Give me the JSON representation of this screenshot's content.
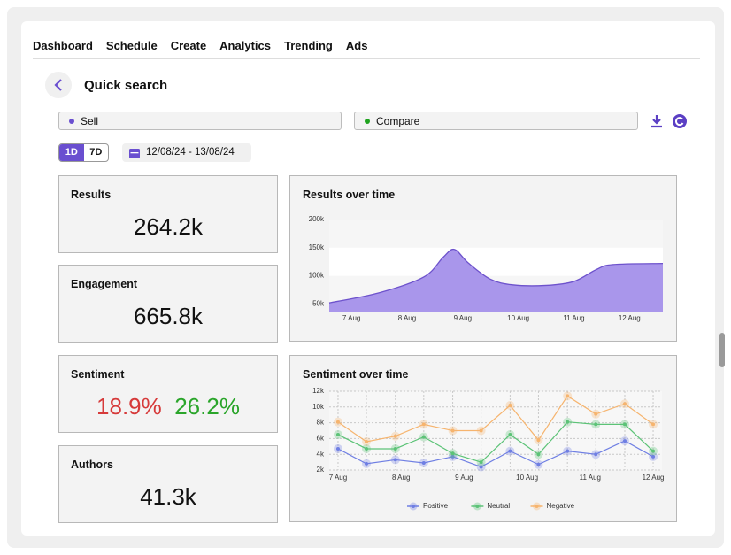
{
  "nav": {
    "tabs": [
      "Dashboard",
      "Schedule",
      "Create",
      "Analytics",
      "Trending",
      "Ads"
    ],
    "active": 4
  },
  "header": {
    "title": "Quick search"
  },
  "search": {
    "sell": "Sell",
    "compare": "Compare"
  },
  "range": {
    "buttons": [
      "1D",
      "7D"
    ],
    "active": 0,
    "dates": "12/08/24 - 13/08/24"
  },
  "cards": [
    {
      "label": "Results",
      "value": "264.2k"
    },
    {
      "label": "Engagement",
      "value": "665.8k"
    },
    {
      "label": "Sentiment",
      "values": [
        "18.9%",
        "26.2%"
      ]
    },
    {
      "label": "Authors",
      "value": "41.3k"
    }
  ],
  "chart_data": [
    {
      "type": "area",
      "title": "Results over time",
      "x": [
        6.6,
        7.5,
        8.3,
        8.65,
        8.85,
        9.1,
        9.5,
        9.9,
        10.5,
        11.0,
        11.4,
        11.7,
        12.6
      ],
      "series": [
        {
          "color": "#a996eb",
          "values": [
            52000,
            70000,
            98000,
            133000,
            147000,
            123000,
            94000,
            84000,
            83000,
            90000,
            111000,
            120000,
            122000
          ]
        }
      ],
      "xlim": [
        6.6,
        12.6
      ],
      "xticks": [
        {
          "value": 7,
          "label": "7 Aug"
        },
        {
          "value": 8,
          "label": "8 Aug"
        },
        {
          "value": 9,
          "label": "9 Aug"
        },
        {
          "value": 10,
          "label": "10 Aug"
        },
        {
          "value": 11,
          "label": "11 Aug"
        },
        {
          "value": 12,
          "label": "12 Aug"
        }
      ],
      "ylim": [
        35000,
        200000
      ],
      "yticks": [
        {
          "value": 50000,
          "label": "50k"
        },
        {
          "value": 100000,
          "label": "100k"
        },
        {
          "value": 150000,
          "label": "150k"
        },
        {
          "value": 200000,
          "label": "200k"
        }
      ],
      "grid": true
    },
    {
      "type": "line",
      "title": "Sentiment over time",
      "x": [
        7,
        7.45,
        7.91,
        8.36,
        8.82,
        9.27,
        9.73,
        10.18,
        10.64,
        11.09,
        11.55,
        12
      ],
      "series": [
        {
          "name": "Positive",
          "color": "#6f7fe3",
          "values": [
            4700,
            2800,
            3300,
            2900,
            3700,
            2400,
            4400,
            2700,
            4400,
            4000,
            5700,
            3700
          ]
        },
        {
          "name": "Neutral",
          "color": "#5cc377",
          "values": [
            6500,
            4700,
            4700,
            6200,
            4100,
            3000,
            6500,
            4000,
            8100,
            7800,
            7800,
            4400
          ]
        },
        {
          "name": "Negative",
          "color": "#f6b46e",
          "values": [
            8100,
            5600,
            6300,
            7800,
            7000,
            7000,
            10200,
            5800,
            11400,
            9100,
            10400,
            7800
          ]
        }
      ],
      "xlim": [
        6.86,
        12.14
      ],
      "xticks": [
        {
          "value": 7,
          "label": "7 Aug"
        },
        {
          "value": 8,
          "label": "8 Aug"
        },
        {
          "value": 9,
          "label": "9 Aug"
        },
        {
          "value": 10,
          "label": "10 Aug"
        },
        {
          "value": 11,
          "label": "11 Aug"
        },
        {
          "value": 12,
          "label": "12 Aug"
        }
      ],
      "ylim": [
        2000,
        12000
      ],
      "yticks": [
        {
          "value": 2000,
          "label": "2k"
        },
        {
          "value": 4000,
          "label": "4k"
        },
        {
          "value": 6000,
          "label": "6k"
        },
        {
          "value": 8000,
          "label": "8k"
        },
        {
          "value": 10000,
          "label": "10k"
        },
        {
          "value": 12000,
          "label": "12k"
        }
      ],
      "grid": true,
      "legend": "bottom"
    }
  ]
}
